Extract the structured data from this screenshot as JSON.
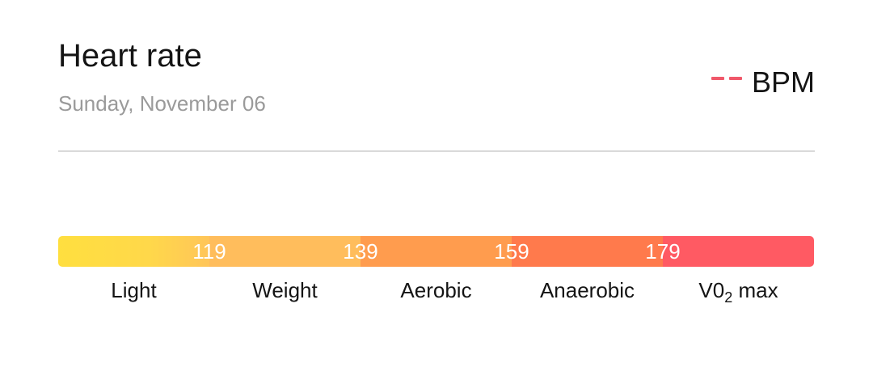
{
  "card": {
    "title": "Heart rate",
    "date": "Sunday, November 06",
    "legend": {
      "label": "BPM",
      "color": "#f0586a"
    }
  },
  "zone_bar": {
    "thresholds": [
      "119",
      "139",
      "159",
      "179"
    ],
    "zones": [
      {
        "label": "Light",
        "color": "#ffdc44"
      },
      {
        "label": "Weight",
        "color": "#ffbd5c"
      },
      {
        "label": "Aerobic",
        "color": "#ff9c4e"
      },
      {
        "label": "Anaerobic",
        "color": "#ff7a4c"
      },
      {
        "label_main": "V0",
        "label_sub": "2",
        "label_tail": " max",
        "color": "#ff5a63"
      }
    ]
  }
}
